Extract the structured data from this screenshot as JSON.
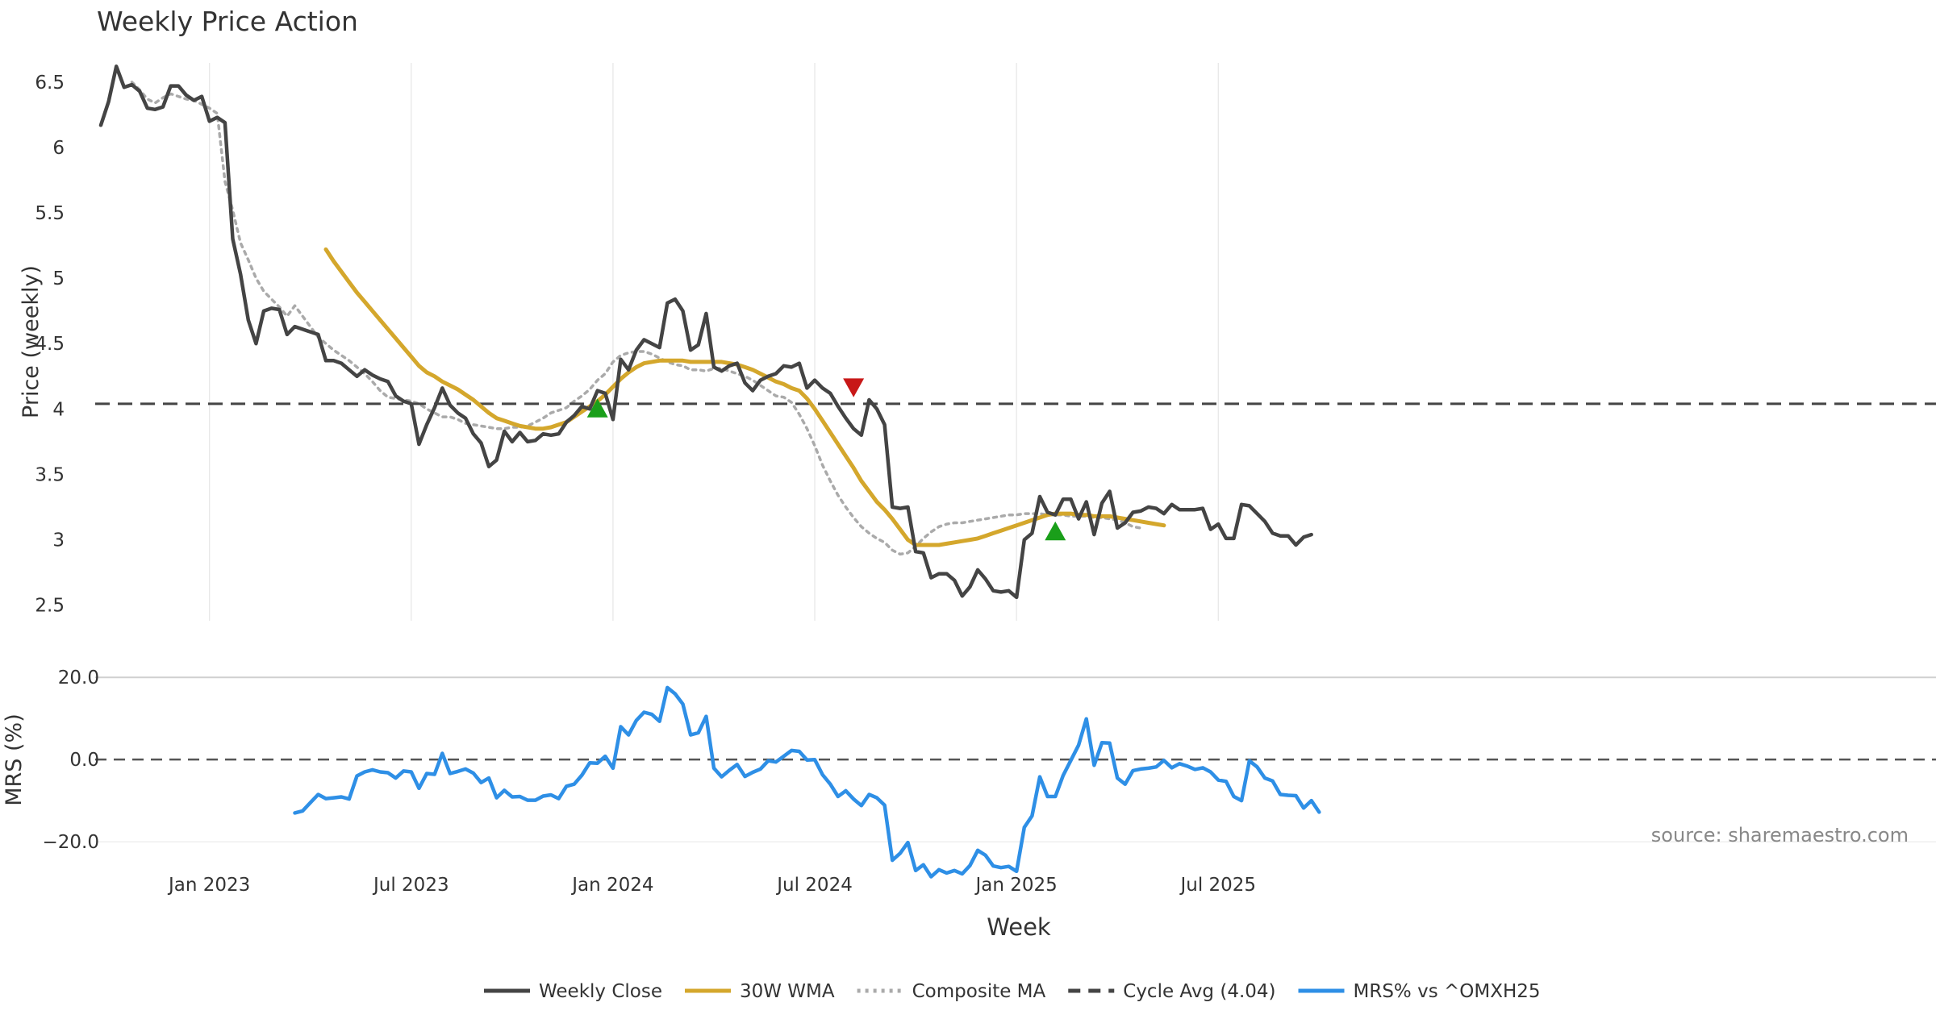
{
  "chart_data": [
    {
      "type": "line",
      "title": "Weekly Price Action",
      "xlabel": "",
      "ylabel": "Price (weekly)",
      "ylim": [
        2.35,
        6.85
      ],
      "yticks": [
        2.5,
        3,
        3.5,
        4,
        4.5,
        5,
        5.5,
        6,
        6.5
      ],
      "ytick_labels": [
        "2.5",
        "3",
        "3.5",
        "4",
        "4.5",
        "5",
        "5.5",
        "6",
        "6.5"
      ],
      "x_start_week": "2022-10",
      "xticks": [
        {
          "label": "Jan 2023",
          "week": 14
        },
        {
          "label": "Jul 2023",
          "week": 40
        },
        {
          "label": "Jan 2024",
          "week": 66
        },
        {
          "label": "Jul 2024",
          "week": 92
        },
        {
          "label": "Jan 2025",
          "week": 118
        },
        {
          "label": "Jul 2025",
          "week": 144
        }
      ],
      "grid": true,
      "series": [
        {
          "name": "Weekly Close",
          "color": "#444444",
          "style": "solid",
          "start_week": 0,
          "values": [
            6.17,
            6.35,
            6.62,
            6.46,
            6.48,
            6.43,
            6.3,
            6.29,
            6.31,
            6.47,
            6.47,
            6.4,
            6.36,
            6.39,
            6.2,
            6.23,
            6.19,
            5.3,
            5.03,
            4.68,
            4.5,
            4.75,
            4.77,
            4.76,
            4.57,
            4.63,
            4.61,
            4.59,
            4.57,
            4.37,
            4.37,
            4.35,
            4.3,
            4.25,
            4.3,
            4.26,
            4.23,
            4.21,
            4.1,
            4.06,
            4.04,
            3.73,
            3.88,
            4.01,
            4.16,
            4.03,
            3.97,
            3.93,
            3.81,
            3.74,
            3.56,
            3.61,
            3.83,
            3.75,
            3.82,
            3.75,
            3.76,
            3.81,
            3.8,
            3.81,
            3.9,
            3.95,
            4.02,
            4.0,
            4.14,
            4.12,
            3.92,
            4.38,
            4.3,
            4.45,
            4.53,
            4.5,
            4.47,
            4.81,
            4.84,
            4.75,
            4.45,
            4.49,
            4.73,
            4.32,
            4.29,
            4.33,
            4.35,
            4.2,
            4.14,
            4.22,
            4.25,
            4.27,
            4.33,
            4.32,
            4.35,
            4.16,
            4.22,
            4.16,
            4.12,
            4.02,
            3.93,
            3.85,
            3.8,
            4.07,
            4.0,
            3.88,
            3.25,
            3.24,
            3.25,
            2.91,
            2.9,
            2.71,
            2.74,
            2.74,
            2.69,
            2.57,
            2.64,
            2.77,
            2.7,
            2.61,
            2.6,
            2.61,
            2.56,
            3.0,
            3.05,
            3.33,
            3.21,
            3.19,
            3.31,
            3.31,
            3.16,
            3.29,
            3.04,
            3.28,
            3.37,
            3.09,
            3.13,
            3.21,
            3.22,
            3.25,
            3.24,
            3.2,
            3.27,
            3.23,
            3.23,
            3.23,
            3.24,
            3.08,
            3.12,
            3.01,
            3.01,
            3.27,
            3.26,
            3.2,
            3.14,
            3.05,
            3.03,
            3.03,
            2.96,
            3.02,
            3.04
          ]
        },
        {
          "name": "30W WMA",
          "color": "#D4A72C",
          "style": "solid",
          "start_week": 29,
          "values": [
            5.22,
            5.13,
            5.05,
            4.97,
            4.89,
            4.82,
            4.75,
            4.68,
            4.61,
            4.54,
            4.47,
            4.4,
            4.33,
            4.28,
            4.25,
            4.21,
            4.18,
            4.15,
            4.11,
            4.07,
            4.02,
            3.97,
            3.93,
            3.91,
            3.89,
            3.87,
            3.86,
            3.85,
            3.85,
            3.86,
            3.88,
            3.9,
            3.94,
            3.98,
            4.02,
            4.06,
            4.11,
            4.17,
            4.23,
            4.28,
            4.32,
            4.35,
            4.36,
            4.37,
            4.37,
            4.37,
            4.37,
            4.36,
            4.36,
            4.36,
            4.36,
            4.36,
            4.35,
            4.34,
            4.32,
            4.3,
            4.27,
            4.24,
            4.21,
            4.19,
            4.16,
            4.14,
            4.08,
            4.0,
            3.91,
            3.82,
            3.73,
            3.64,
            3.55,
            3.45,
            3.37,
            3.29,
            3.23,
            3.16,
            3.08,
            3.0,
            2.96,
            2.96,
            2.96,
            2.96,
            2.97,
            2.98,
            2.99,
            3.0,
            3.01,
            3.03,
            3.05,
            3.07,
            3.09,
            3.11,
            3.13,
            3.15,
            3.17,
            3.19,
            3.2,
            3.2,
            3.2,
            3.19,
            3.19,
            3.18,
            3.18,
            3.18,
            3.17,
            3.16,
            3.15,
            3.14,
            3.13,
            3.12,
            3.11
          ]
        },
        {
          "name": "Composite MA",
          "color": "#AAAAAA",
          "style": "dotted",
          "start_week": 4,
          "values": [
            6.5,
            6.44,
            6.37,
            6.34,
            6.38,
            6.41,
            6.39,
            6.37,
            6.36,
            6.33,
            6.3,
            6.26,
            5.74,
            5.52,
            5.27,
            5.14,
            5.0,
            4.9,
            4.84,
            4.78,
            4.71,
            4.79,
            4.71,
            4.63,
            4.55,
            4.5,
            4.45,
            4.41,
            4.37,
            4.32,
            4.27,
            4.21,
            4.14,
            4.09,
            4.08,
            4.07,
            4.06,
            4.04,
            4.0,
            3.97,
            3.94,
            3.94,
            3.92,
            3.89,
            3.88,
            3.87,
            3.86,
            3.85,
            3.85,
            3.86,
            3.86,
            3.87,
            3.9,
            3.93,
            3.97,
            3.99,
            4.01,
            4.06,
            4.1,
            4.15,
            4.22,
            4.27,
            4.36,
            4.41,
            4.43,
            4.44,
            4.44,
            4.42,
            4.39,
            4.36,
            4.34,
            4.33,
            4.3,
            4.3,
            4.29,
            4.31,
            4.31,
            4.29,
            4.27,
            4.25,
            4.22,
            4.18,
            4.14,
            4.1,
            4.09,
            4.05,
            3.96,
            3.85,
            3.72,
            3.57,
            3.45,
            3.34,
            3.25,
            3.17,
            3.1,
            3.05,
            3.01,
            2.98,
            2.92,
            2.89,
            2.9,
            2.95,
            3.01,
            3.06,
            3.1,
            3.12,
            3.13,
            3.13,
            3.14,
            3.15,
            3.16,
            3.17,
            3.18,
            3.19,
            3.19,
            3.2,
            3.2,
            3.2,
            3.19,
            3.19,
            3.19,
            3.18,
            3.18,
            3.18,
            3.17,
            3.17,
            3.16,
            3.15,
            3.13,
            3.1,
            3.09
          ]
        },
        {
          "name": "Cycle Avg (4.04)",
          "color": "#444444",
          "style": "dashed",
          "value": 4.04
        }
      ],
      "markers": [
        {
          "type": "buy",
          "shape": "triangle-up",
          "color": "#1A9F1A",
          "week": 64,
          "value": 4.0
        },
        {
          "type": "sell",
          "shape": "triangle-down",
          "color": "#C81818",
          "week": 97,
          "value": 4.17
        },
        {
          "type": "buy",
          "shape": "triangle-up",
          "color": "#1A9F1A",
          "week": 123,
          "value": 3.06
        }
      ]
    },
    {
      "type": "line",
      "title": "",
      "xlabel": "Week",
      "ylabel": "MRS (%)",
      "ylim": [
        -29,
        22
      ],
      "yticks": [
        -20,
        0,
        20
      ],
      "ytick_labels": [
        "−20.0",
        "0.0",
        "20.0"
      ],
      "zero_line": true,
      "series": [
        {
          "name": "MRS% vs ^OMXH25",
          "color": "#2E8FE6",
          "style": "solid",
          "start_week": 25,
          "values": [
            -13.0,
            -12.5,
            -10.5,
            -8.5,
            -9.5,
            -9.3,
            -9.1,
            -9.6,
            -4.0,
            -3.0,
            -2.5,
            -3.0,
            -3.2,
            -4.5,
            -2.8,
            -3.0,
            -7.0,
            -3.4,
            -3.6,
            1.5,
            -3.4,
            -2.9,
            -2.3,
            -3.3,
            -5.6,
            -4.5,
            -9.3,
            -7.5,
            -9.1,
            -9.0,
            -9.9,
            -9.9,
            -8.9,
            -8.6,
            -9.5,
            -6.5,
            -6.0,
            -3.8,
            -0.8,
            -0.9,
            0.8,
            -2.1,
            8.0,
            6.0,
            9.5,
            11.5,
            11.0,
            9.3,
            17.5,
            16.0,
            13.5,
            6.0,
            6.5,
            10.5,
            -2.1,
            -4.2,
            -2.6,
            -1.2,
            -4.1,
            -3.1,
            -2.3,
            -0.3,
            -0.6,
            0.8,
            2.2,
            2.0,
            -0.1,
            0.0,
            -3.7,
            -6.0,
            -9.0,
            -7.6,
            -9.6,
            -11.2,
            -8.5,
            -9.3,
            -11.1,
            -24.5,
            -22.8,
            -20.2,
            -27.0,
            -25.6,
            -28.5,
            -26.8,
            -27.6,
            -27.0,
            -27.8,
            -25.8,
            -22.1,
            -23.3,
            -25.9,
            -26.3,
            -26.0,
            -27.2,
            -16.5,
            -13.7,
            -4.2,
            -9.0,
            -9.0,
            -3.9,
            -0.2,
            3.5,
            9.9,
            -1.4,
            4.1,
            4.0,
            -4.5,
            -6.0,
            -2.7,
            -2.3,
            -2.1,
            -1.8,
            -0.2,
            -2.0,
            -1.0,
            -1.6,
            -2.4,
            -2.0,
            -3.0,
            -5.0,
            -5.3,
            -9.0,
            -10.0,
            -0.3,
            -1.8,
            -4.5,
            -5.2,
            -8.5,
            -8.7,
            -8.8,
            -11.8,
            -10.0,
            -12.8
          ]
        }
      ],
      "annotation": "source: sharemaestro.com"
    }
  ],
  "legend": {
    "position": "bottom",
    "items": [
      {
        "label": "Weekly Close",
        "color": "#444444",
        "style": "solid"
      },
      {
        "label": "30W WMA",
        "color": "#D4A72C",
        "style": "solid"
      },
      {
        "label": "Composite MA",
        "color": "#AAAAAA",
        "style": "dotted"
      },
      {
        "label": "Cycle Avg (4.04)",
        "color": "#444444",
        "style": "dashed"
      },
      {
        "label": "MRS% vs ^OMXH25",
        "color": "#2E8FE6",
        "style": "solid"
      }
    ]
  }
}
